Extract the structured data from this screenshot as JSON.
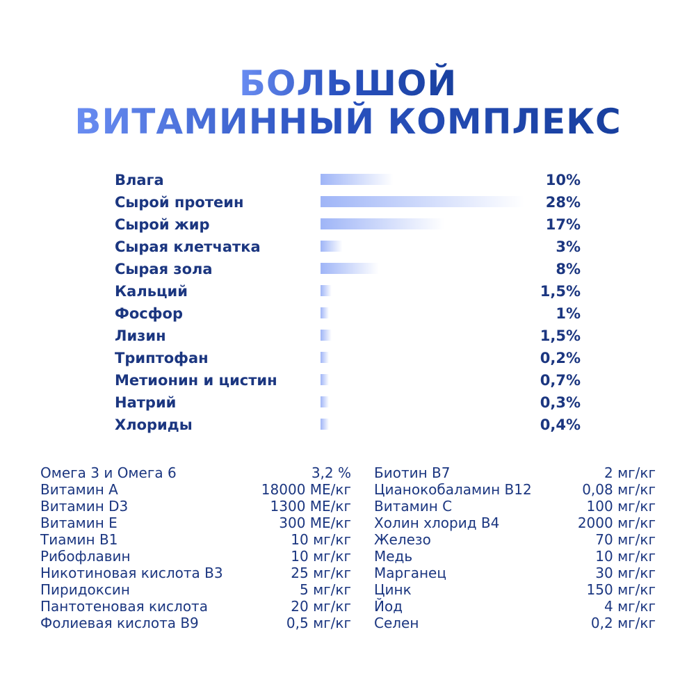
{
  "title": {
    "line1": "БОЛЬШОЙ",
    "line2": "ВИТАМИННЫЙ КОМПЛЕКС"
  },
  "colors": {
    "text": "#1b3680",
    "title_light": "#6a8df2",
    "title_dark": "#183f9e",
    "bar_start": "#9fb5f7",
    "bar_end": "#ffffff"
  },
  "chart_data": {
    "type": "bar",
    "orientation": "horizontal",
    "categories": [
      "Влага",
      "Сырой протеин",
      "Сырой жир",
      "Сырая клетчатка",
      "Сырая зола",
      "Кальций",
      "Фосфор",
      "Лизин",
      "Триптофан",
      "Метионин и цистин",
      "Натрий",
      "Хлориды"
    ],
    "values": [
      10,
      28,
      17,
      3,
      8,
      1.5,
      1,
      1.5,
      0.2,
      0.7,
      0.3,
      0.4
    ],
    "value_labels": [
      "10%",
      "28%",
      "17%",
      "3%",
      "8%",
      "1,5%",
      "1%",
      "1,5%",
      "0,2%",
      "0,7%",
      "0,3%",
      "0,4%"
    ],
    "unit": "%",
    "xlim": [
      0,
      28
    ],
    "grid": false,
    "legend": "none"
  },
  "nutrients_left": [
    {
      "name": "Омега 3 и Омега 6",
      "value": "3,2 %"
    },
    {
      "name": "Витамин А",
      "value": "18000 МЕ/кг"
    },
    {
      "name": "Витамин D3",
      "value": "1300 МЕ/кг"
    },
    {
      "name": "Витамин Е",
      "value": "300 МЕ/кг"
    },
    {
      "name": "Тиамин В1",
      "value": "10 мг/кг"
    },
    {
      "name": "Рибофлавин",
      "value": "10 мг/кг"
    },
    {
      "name": "Никотиновая кислота В3",
      "value": "25 мг/кг"
    },
    {
      "name": "Пиридоксин",
      "value": "5 мг/кг"
    },
    {
      "name": "Пантотеновая кислота",
      "value": "20 мг/кг"
    },
    {
      "name": "Фолиевая кислота В9",
      "value": "0,5 мг/кг"
    }
  ],
  "nutrients_right": [
    {
      "name": "Биотин В7",
      "value": "2 мг/кг"
    },
    {
      "name": "Цианокобаламин В12",
      "value": "0,08 мг/кг"
    },
    {
      "name": "Витамин С",
      "value": "100 мг/кг"
    },
    {
      "name": "Холин хлорид В4",
      "value": "2000 мг/кг"
    },
    {
      "name": "Железо",
      "value": "70 мг/кг"
    },
    {
      "name": "Медь",
      "value": "10 мг/кг"
    },
    {
      "name": "Марганец",
      "value": "30 мг/кг"
    },
    {
      "name": "Цинк",
      "value": "150 мг/кг"
    },
    {
      "name": "Йод",
      "value": "4 мг/кг"
    },
    {
      "name": "Селен",
      "value": "0,2 мг/кг"
    }
  ]
}
